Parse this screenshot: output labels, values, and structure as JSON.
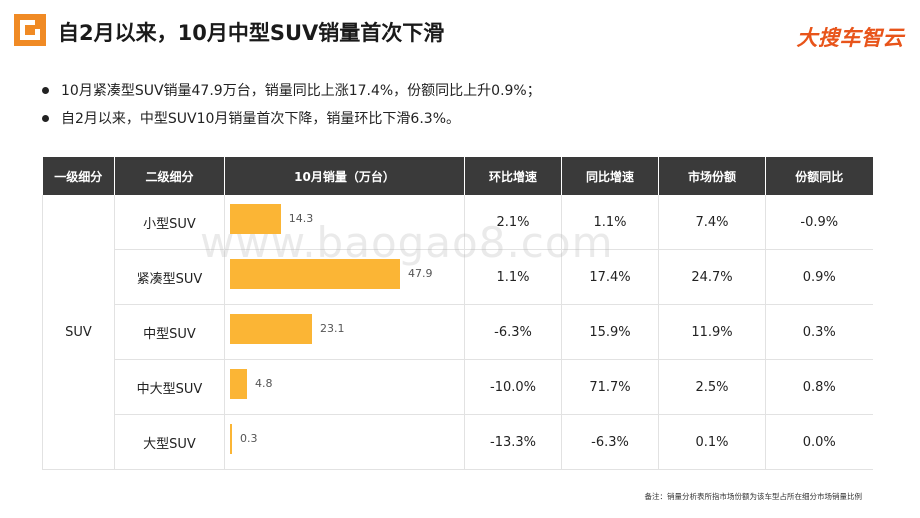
{
  "header": {
    "title": "自2月以来，10月中型SUV销量首次下滑",
    "brand": "大搜车智云"
  },
  "bullets": [
    "10月紧凑型SUV销量47.9万台，销量同比上涨17.4%，份额同比上升0.9%；",
    "自2月以来，中型SUV10月销量首次下降，销量环比下滑6.3%。"
  ],
  "table": {
    "headers": [
      "一级细分",
      "二级细分",
      "10月销量（万台）",
      "环比增速",
      "同比增速",
      "市场份额",
      "份额同比"
    ],
    "group": "SUV",
    "rows": [
      {
        "segment": "小型SUV",
        "sales": 14.3,
        "sales_label": "14.3",
        "mom": "2.1%",
        "yoy": "1.1%",
        "share": "7.4%",
        "share_yoy": "-0.9%"
      },
      {
        "segment": "紧凑型SUV",
        "sales": 47.9,
        "sales_label": "47.9",
        "mom": "1.1%",
        "yoy": "17.4%",
        "share": "24.7%",
        "share_yoy": "0.9%"
      },
      {
        "segment": "中型SUV",
        "sales": 23.1,
        "sales_label": "23.1",
        "mom": "-6.3%",
        "yoy": "15.9%",
        "share": "11.9%",
        "share_yoy": "0.3%"
      },
      {
        "segment": "中大型SUV",
        "sales": 4.8,
        "sales_label": "4.8",
        "mom": "-10.0%",
        "yoy": "71.7%",
        "share": "2.5%",
        "share_yoy": "0.8%"
      },
      {
        "segment": "大型SUV",
        "sales": 0.3,
        "sales_label": "0.3",
        "mom": "-13.3%",
        "yoy": "-6.3%",
        "share": "0.1%",
        "share_yoy": "0.0%"
      }
    ]
  },
  "colors": {
    "bar": "#fbb535",
    "header_bg": "#3a3a3a",
    "negative": "#d42b2b",
    "brand": "#e8541a"
  },
  "watermark": "www.baogao8.com",
  "note": "备注：销量分析表所指市场份额为该车型占所在细分市场销量比例"
}
